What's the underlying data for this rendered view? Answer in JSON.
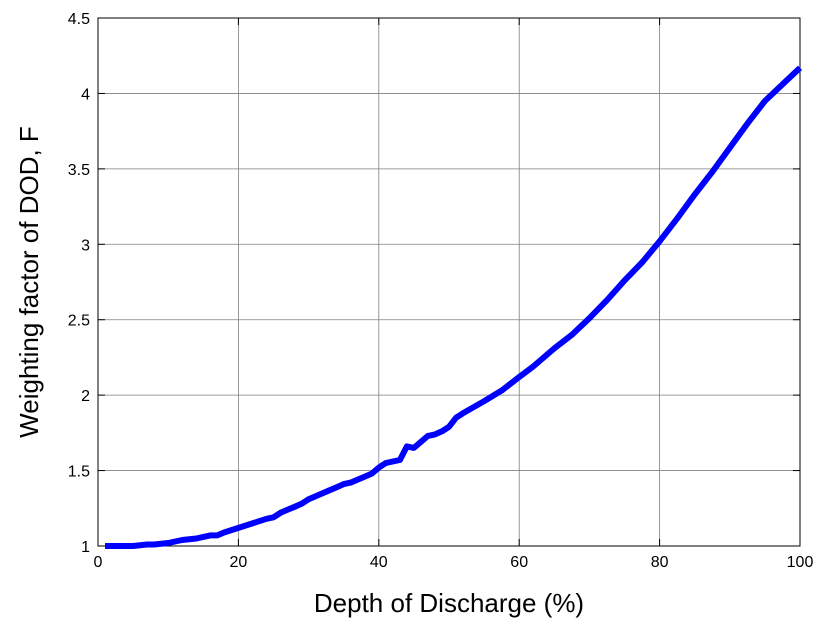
{
  "chart_data": {
    "type": "line",
    "title": "",
    "xlabel": "Depth of Discharge (%)",
    "ylabel": "Weighting factor of DOD, F",
    "xlim": [
      0,
      100
    ],
    "ylim": [
      1,
      4.5
    ],
    "xticks": [
      0,
      20,
      40,
      60,
      80,
      100
    ],
    "xtick_labels": [
      "0",
      "20",
      "40",
      "60",
      "80",
      "100"
    ],
    "yticks": [
      1,
      1.5,
      2,
      2.5,
      3,
      3.5,
      4,
      4.5
    ],
    "ytick_labels": [
      "1",
      "1.5",
      "2",
      "2.5",
      "3",
      "3.5",
      "4",
      "4.5"
    ],
    "grid": true,
    "series": [
      {
        "color": "#0000ff",
        "x": [
          1,
          4,
          5,
          7,
          8,
          10,
          12,
          14,
          15,
          16,
          17,
          18,
          20,
          22,
          24,
          25,
          26,
          27,
          28,
          29,
          30,
          31,
          32,
          33,
          34,
          35,
          36,
          37,
          38,
          39,
          40,
          41,
          42,
          43,
          44,
          45,
          46,
          47,
          48,
          49,
          50,
          51,
          52,
          55,
          57.5,
          60,
          62,
          65,
          67.5,
          70,
          72.5,
          75,
          77.5,
          80,
          82.5,
          85,
          87.5,
          90,
          92.5,
          95,
          97.5,
          100
        ],
        "y": [
          1.0,
          1.0,
          1.0,
          1.01,
          1.01,
          1.02,
          1.04,
          1.05,
          1.06,
          1.07,
          1.07,
          1.09,
          1.12,
          1.15,
          1.18,
          1.19,
          1.22,
          1.24,
          1.26,
          1.28,
          1.31,
          1.33,
          1.35,
          1.37,
          1.39,
          1.41,
          1.42,
          1.44,
          1.46,
          1.48,
          1.52,
          1.55,
          1.56,
          1.57,
          1.66,
          1.65,
          1.69,
          1.73,
          1.74,
          1.76,
          1.79,
          1.85,
          1.88,
          1.96,
          2.03,
          2.12,
          2.19,
          2.31,
          2.4,
          2.51,
          2.63,
          2.76,
          2.88,
          3.02,
          3.17,
          3.33,
          3.48,
          3.64,
          3.8,
          3.95,
          4.06,
          4.17
        ]
      }
    ]
  }
}
